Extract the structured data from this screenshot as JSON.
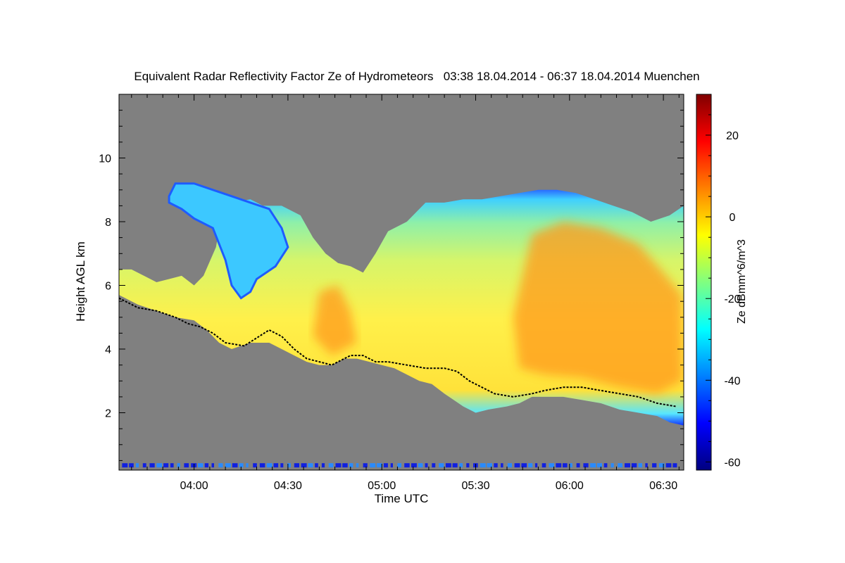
{
  "chart_data": {
    "type": "heatmap",
    "title": "Equivalent Radar Reflectivity Factor Ze of Hydrometeors   03:38 18.04.2014 - 06:37 18.04.2014 Muenchen",
    "xlabel": "Time UTC",
    "ylabel": "Height AGL km",
    "colorbar_label": "Ze dBmm^6/m^3",
    "x_ticks": [
      "04:00",
      "04:30",
      "05:00",
      "05:30",
      "06:00",
      "06:30"
    ],
    "x_tick_minutes": [
      0,
      30,
      60,
      90,
      120,
      150
    ],
    "x_range_minutes_from_0400": [
      -24,
      156.5
    ],
    "y_ticks": [
      2,
      4,
      6,
      8,
      10
    ],
    "ylim": [
      0.2,
      12
    ],
    "colorbar_ticks": [
      -60,
      -40,
      -20,
      0,
      20
    ],
    "colorbar_range": [
      -62,
      30
    ],
    "background_color": "#808080",
    "colormap": [
      "#000080",
      "#0000ff",
      "#0080ff",
      "#00ffff",
      "#80ff80",
      "#ffff00",
      "#ff8000",
      "#ff0000",
      "#800000"
    ],
    "cloud_top_km": [
      [
        -24,
        6.5
      ],
      [
        -20,
        6.5
      ],
      [
        -16,
        6.3
      ],
      [
        -12,
        6.1
      ],
      [
        -8,
        6.2
      ],
      [
        -4,
        6.3
      ],
      [
        0,
        6.0
      ],
      [
        3,
        6.3
      ],
      [
        7,
        7.2
      ],
      [
        9,
        8.3
      ],
      [
        12,
        8.6
      ],
      [
        18,
        8.7
      ],
      [
        22,
        8.5
      ],
      [
        28,
        8.5
      ],
      [
        34,
        8.2
      ],
      [
        38,
        7.5
      ],
      [
        42,
        7.0
      ],
      [
        46,
        6.7
      ],
      [
        50,
        6.6
      ],
      [
        54,
        6.4
      ],
      [
        58,
        7.0
      ],
      [
        62,
        7.7
      ],
      [
        68,
        8.0
      ],
      [
        74,
        8.6
      ],
      [
        80,
        8.6
      ],
      [
        86,
        8.7
      ],
      [
        92,
        8.7
      ],
      [
        98,
        8.8
      ],
      [
        104,
        8.9
      ],
      [
        110,
        9.0
      ],
      [
        116,
        9.0
      ],
      [
        122,
        8.9
      ],
      [
        128,
        8.7
      ],
      [
        134,
        8.5
      ],
      [
        140,
        8.3
      ],
      [
        146,
        8.0
      ],
      [
        152,
        8.2
      ],
      [
        156.5,
        8.5
      ]
    ],
    "cloud_base_km": [
      [
        -24,
        5.7
      ],
      [
        -18,
        5.4
      ],
      [
        -12,
        5.2
      ],
      [
        -6,
        5.0
      ],
      [
        0,
        4.9
      ],
      [
        4,
        4.6
      ],
      [
        8,
        4.2
      ],
      [
        12,
        4.0
      ],
      [
        18,
        4.2
      ],
      [
        24,
        4.2
      ],
      [
        28,
        4.0
      ],
      [
        32,
        3.8
      ],
      [
        36,
        3.6
      ],
      [
        40,
        3.5
      ],
      [
        44,
        3.5
      ],
      [
        48,
        3.7
      ],
      [
        52,
        3.7
      ],
      [
        56,
        3.6
      ],
      [
        60,
        3.5
      ],
      [
        64,
        3.4
      ],
      [
        68,
        3.2
      ],
      [
        72,
        3.0
      ],
      [
        76,
        2.9
      ],
      [
        80,
        2.6
      ],
      [
        86,
        2.2
      ],
      [
        90,
        2.0
      ],
      [
        94,
        2.1
      ],
      [
        100,
        2.2
      ],
      [
        104,
        2.3
      ],
      [
        108,
        2.5
      ],
      [
        112,
        2.5
      ],
      [
        118,
        2.5
      ],
      [
        124,
        2.4
      ],
      [
        130,
        2.3
      ],
      [
        136,
        2.1
      ],
      [
        142,
        2.0
      ],
      [
        148,
        1.9
      ],
      [
        152,
        1.7
      ],
      [
        156.5,
        1.6
      ]
    ],
    "black_line_km": [
      [
        -24,
        5.6
      ],
      [
        -18,
        5.3
      ],
      [
        -12,
        5.2
      ],
      [
        -6,
        5.0
      ],
      [
        -2,
        4.8
      ],
      [
        2,
        4.7
      ],
      [
        6,
        4.5
      ],
      [
        10,
        4.2
      ],
      [
        16,
        4.1
      ],
      [
        24,
        4.6
      ],
      [
        28,
        4.4
      ],
      [
        32,
        4.0
      ],
      [
        36,
        3.7
      ],
      [
        40,
        3.6
      ],
      [
        44,
        3.5
      ],
      [
        50,
        3.8
      ],
      [
        54,
        3.8
      ],
      [
        58,
        3.6
      ],
      [
        62,
        3.6
      ],
      [
        68,
        3.5
      ],
      [
        74,
        3.4
      ],
      [
        80,
        3.4
      ],
      [
        84,
        3.3
      ],
      [
        88,
        3.0
      ],
      [
        92,
        2.8
      ],
      [
        96,
        2.6
      ],
      [
        102,
        2.5
      ],
      [
        108,
        2.6
      ],
      [
        112,
        2.7
      ],
      [
        118,
        2.8
      ],
      [
        124,
        2.8
      ],
      [
        130,
        2.7
      ],
      [
        136,
        2.6
      ],
      [
        142,
        2.5
      ],
      [
        148,
        2.3
      ],
      [
        154,
        2.2
      ]
    ],
    "high_fragment_km": [
      [
        -8,
        8.8
      ],
      [
        -6,
        9.2
      ],
      [
        0,
        9.2
      ],
      [
        6,
        9.0
      ],
      [
        12,
        8.8
      ],
      [
        18,
        8.6
      ],
      [
        24,
        8.4
      ],
      [
        28,
        7.8
      ],
      [
        30,
        7.2
      ],
      [
        26,
        6.6
      ],
      [
        20,
        6.2
      ],
      [
        18,
        5.8
      ],
      [
        15,
        5.6
      ],
      [
        12,
        6.0
      ],
      [
        10,
        6.8
      ],
      [
        6,
        7.8
      ],
      [
        0,
        8.1
      ],
      [
        -4,
        8.4
      ],
      [
        -8,
        8.6
      ]
    ],
    "max_zone_polygons_km": [
      [
        [
          108,
          7.6
        ],
        [
          118,
          8.0
        ],
        [
          130,
          7.8
        ],
        [
          142,
          7.3
        ],
        [
          150,
          6.4
        ],
        [
          156,
          5.7
        ],
        [
          156,
          3.0
        ],
        [
          148,
          2.6
        ],
        [
          136,
          2.8
        ],
        [
          124,
          3.1
        ],
        [
          112,
          3.2
        ],
        [
          104,
          3.4
        ],
        [
          102,
          5.0
        ]
      ],
      [
        [
          40,
          5.8
        ],
        [
          46,
          6.0
        ],
        [
          50,
          5.2
        ],
        [
          52,
          4.2
        ],
        [
          44,
          3.8
        ],
        [
          38,
          4.4
        ]
      ]
    ]
  }
}
